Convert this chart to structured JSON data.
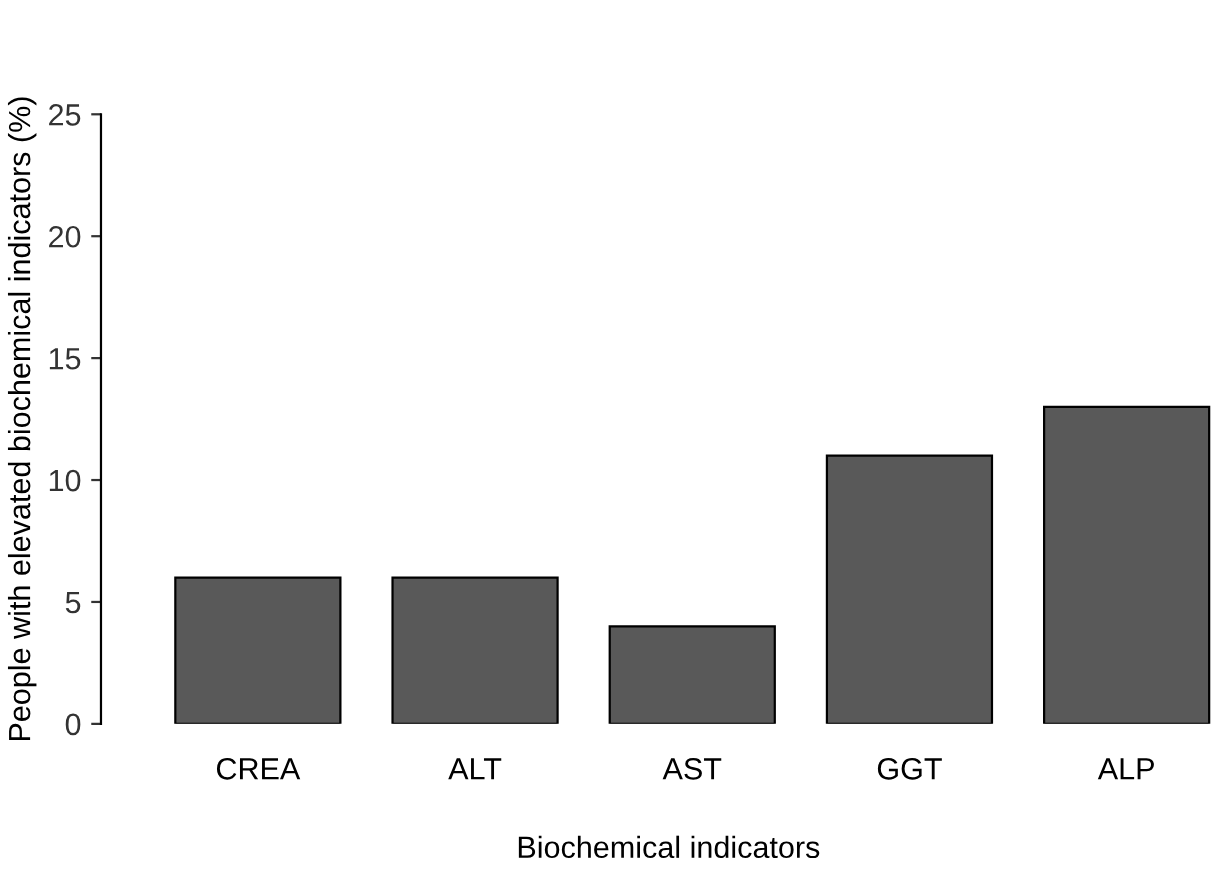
{
  "chart_data": {
    "type": "bar",
    "xlabel": "Biochemical indicators",
    "ylabel": "People with elevated biochemical indicators (%)",
    "categories": [
      "CREA",
      "ALT",
      "AST",
      "GGT",
      "ALP"
    ],
    "values": [
      6,
      6,
      4,
      11,
      13
    ],
    "color": "#595959",
    "ylim": [
      0,
      25
    ],
    "yticks": [
      0,
      5,
      10,
      15,
      20,
      25
    ],
    "grid": false,
    "legend": false
  }
}
